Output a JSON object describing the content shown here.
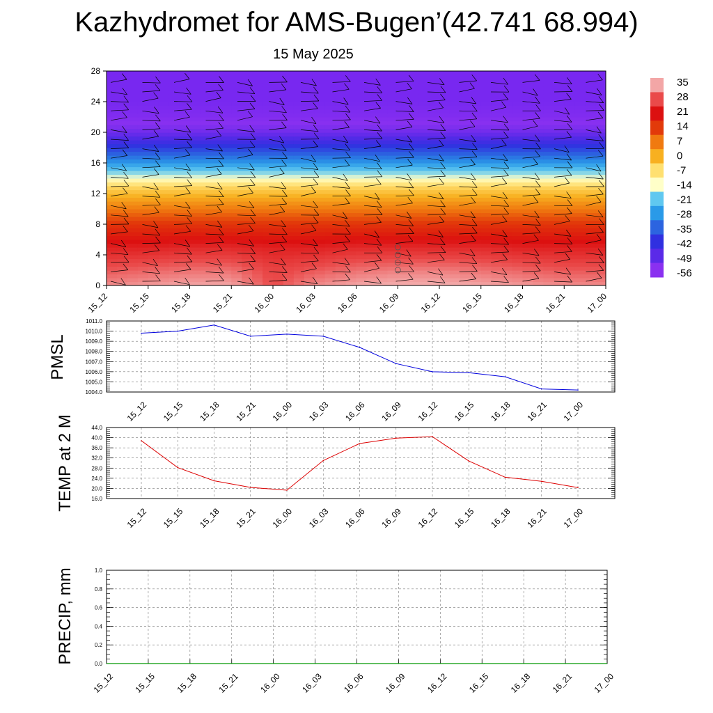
{
  "title": "Kazhydromet for AMS-Bugen’(42.741 68.994)",
  "subtitle": "15 May 2025",
  "chart_data": [
    {
      "type": "heatmap",
      "name": "temperature-height cross section",
      "x_categories": [
        "15_12",
        "15_15",
        "15_18",
        "15_21",
        "16_00",
        "16_03",
        "16_06",
        "16_09",
        "16_12",
        "16_15",
        "16_18",
        "16_21",
        "17_00"
      ],
      "y_ticks": [
        "0",
        "4",
        "8",
        "12",
        "16",
        "20",
        "24",
        "28"
      ],
      "ylim": [
        0,
        28
      ],
      "levels_y": [
        0,
        2,
        5,
        8,
        11,
        13,
        14,
        16,
        18,
        20,
        22,
        24,
        28
      ],
      "values": [
        [
          33,
          34,
          35,
          35,
          28,
          33,
          35,
          36,
          36,
          35,
          34,
          33,
          33
        ],
        [
          29,
          30,
          31,
          31,
          27,
          29,
          31,
          32,
          32,
          31,
          30,
          29,
          29
        ],
        [
          23,
          23,
          24,
          24,
          23,
          23,
          24,
          24,
          24,
          24,
          23,
          23,
          23
        ],
        [
          15,
          15,
          15,
          15,
          15,
          15,
          15,
          15,
          15,
          15,
          15,
          15,
          15
        ],
        [
          3,
          3,
          3,
          3,
          3,
          3,
          3,
          3,
          3,
          3,
          3,
          3,
          3
        ],
        [
          -6,
          -6,
          -6,
          -6,
          -6,
          -6,
          -6,
          -6,
          -6,
          -6,
          -6,
          -6,
          -6
        ],
        [
          -14,
          -14,
          -14,
          -14,
          -14,
          -14,
          -14,
          -14,
          -14,
          -14,
          -14,
          -14,
          -14
        ],
        [
          -28,
          -28,
          -28,
          -28,
          -28,
          -28,
          -28,
          -28,
          -28,
          -28,
          -28,
          -28,
          -28
        ],
        [
          -40,
          -40,
          -40,
          -40,
          -40,
          -40,
          -40,
          -40,
          -40,
          -40,
          -40,
          -40,
          -40
        ],
        [
          -52,
          -52,
          -52,
          -52,
          -52,
          -52,
          -52,
          -52,
          -52,
          -52,
          -52,
          -52,
          -52
        ],
        [
          -58,
          -58,
          -58,
          -58,
          -58,
          -58,
          -58,
          -58,
          -58,
          -58,
          -58,
          -58,
          -58
        ],
        [
          -60,
          -60,
          -60,
          -60,
          -60,
          -60,
          -60,
          -60,
          -60,
          -60,
          -60,
          -60,
          -60
        ],
        [
          -60,
          -60,
          -60,
          -60,
          -60,
          -60,
          -60,
          -60,
          -60,
          -60,
          -60,
          -60,
          -60
        ]
      ],
      "colorbar": {
        "labels": [
          "35",
          "28",
          "21",
          "14",
          "7",
          "0",
          "-7",
          "-14",
          "-21",
          "-28",
          "-35",
          "-42",
          "-49",
          "-56"
        ],
        "colors": [
          "#f3a6a6",
          "#ea4a4a",
          "#dc1010",
          "#e23a0a",
          "#f07a10",
          "#f8b020",
          "#ffe070",
          "#ffffc8",
          "#60c8f0",
          "#2a9ae8",
          "#2c64e0",
          "#3030e0",
          "#5a2ae8",
          "#8a30f0"
        ],
        "placement": "right"
      },
      "wind_barbs": true,
      "calm_markers_at": "16_09"
    },
    {
      "type": "line",
      "ylabel": "PMSL",
      "categories": [
        "15_12",
        "15_15",
        "15_18",
        "15_21",
        "16_00",
        "16_03",
        "16_06",
        "16_09",
        "16_12",
        "16_15",
        "16_18",
        "16_21",
        "17_00"
      ],
      "yticks": [
        "1004.0",
        "1005.0",
        "1006.0",
        "1007.0",
        "1008.0",
        "1009.0",
        "1010.0",
        "1011.0"
      ],
      "ylim": [
        1004.0,
        1011.0
      ],
      "series": [
        {
          "values": [
            1009.8,
            1010.0,
            1010.6,
            1009.5,
            1009.7,
            1009.5,
            1008.4,
            1006.8,
            1006.0,
            1005.9,
            1005.5,
            1004.3,
            1004.2
          ],
          "color": "#0000dd"
        }
      ],
      "grid": true
    },
    {
      "type": "line",
      "ylabel": "TEMP at 2 M",
      "categories": [
        "15_12",
        "15_15",
        "15_18",
        "15_21",
        "16_00",
        "16_03",
        "16_06",
        "16_09",
        "16_12",
        "16_15",
        "16_18",
        "16_21",
        "17_00"
      ],
      "yticks": [
        "16.0",
        "20.0",
        "24.0",
        "28.0",
        "32.0",
        "36.0",
        "40.0",
        "44.0"
      ],
      "ylim": [
        16.0,
        44.0
      ],
      "series": [
        {
          "values": [
            38.8,
            28.2,
            23.0,
            20.4,
            19.3,
            31.0,
            37.7,
            39.8,
            40.4,
            30.8,
            24.4,
            22.8,
            20.3
          ],
          "color": "#dd0000"
        }
      ],
      "grid": true
    },
    {
      "type": "line",
      "ylabel": "PRECIP, mm",
      "categories": [
        "15_12",
        "15_15",
        "15_18",
        "15_21",
        "16_00",
        "16_03",
        "16_06",
        "16_09",
        "16_12",
        "16_15",
        "16_18",
        "16_21",
        "17_00"
      ],
      "yticks": [
        "0.0",
        "0.2",
        "0.4",
        "0.6",
        "0.8",
        "1.0"
      ],
      "ylim": [
        0.0,
        1.0
      ],
      "series": [
        {
          "values": [
            0,
            0,
            0,
            0,
            0,
            0,
            0,
            0,
            0,
            0,
            0,
            0,
            0
          ],
          "color": "#009900"
        }
      ],
      "grid": true
    }
  ]
}
